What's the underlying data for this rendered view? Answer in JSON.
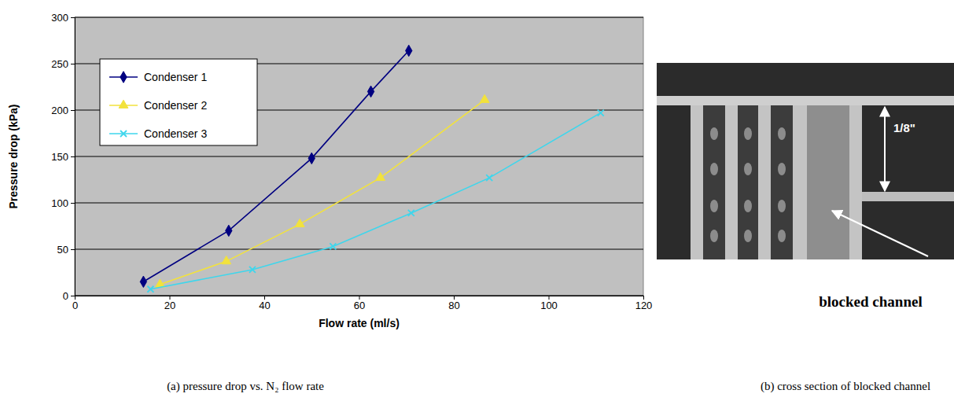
{
  "chart_data": {
    "type": "line",
    "caption": "(a) pressure drop vs. N₂ flow rate",
    "x_label": "Flow rate (ml/s)",
    "y_label": "Pressure drop (kPa)",
    "xlim": [
      0,
      120
    ],
    "xticks": [
      0,
      20,
      40,
      60,
      80,
      100,
      120
    ],
    "ylim": [
      0,
      300
    ],
    "yticks": [
      0,
      50,
      100,
      150,
      200,
      250,
      300
    ],
    "grid": true,
    "legend": "upper left",
    "series": [
      {
        "name": "Condenser 1",
        "color": "#000080",
        "marker": "diamond",
        "x": [
          14.5,
          32.5,
          50,
          62.5,
          70.5
        ],
        "values": [
          15,
          70,
          148,
          220,
          264
        ]
      },
      {
        "name": "Condenser 2",
        "color": "#f2e23c",
        "marker": "triangle",
        "x": [
          18,
          32,
          47.5,
          64.5,
          86.5
        ],
        "values": [
          12,
          37,
          77,
          127,
          211
        ]
      },
      {
        "name": "Condenser 3",
        "color": "#3ed6ec",
        "marker": "x",
        "x": [
          16,
          37.5,
          54.5,
          71,
          87.5,
          111
        ],
        "values": [
          7,
          28,
          53,
          89,
          127,
          197
        ]
      }
    ]
  },
  "photo": {
    "caption": "(b) cross section of blocked channel",
    "dimension_label": "1/8\"",
    "annotation": "blocked channel"
  }
}
